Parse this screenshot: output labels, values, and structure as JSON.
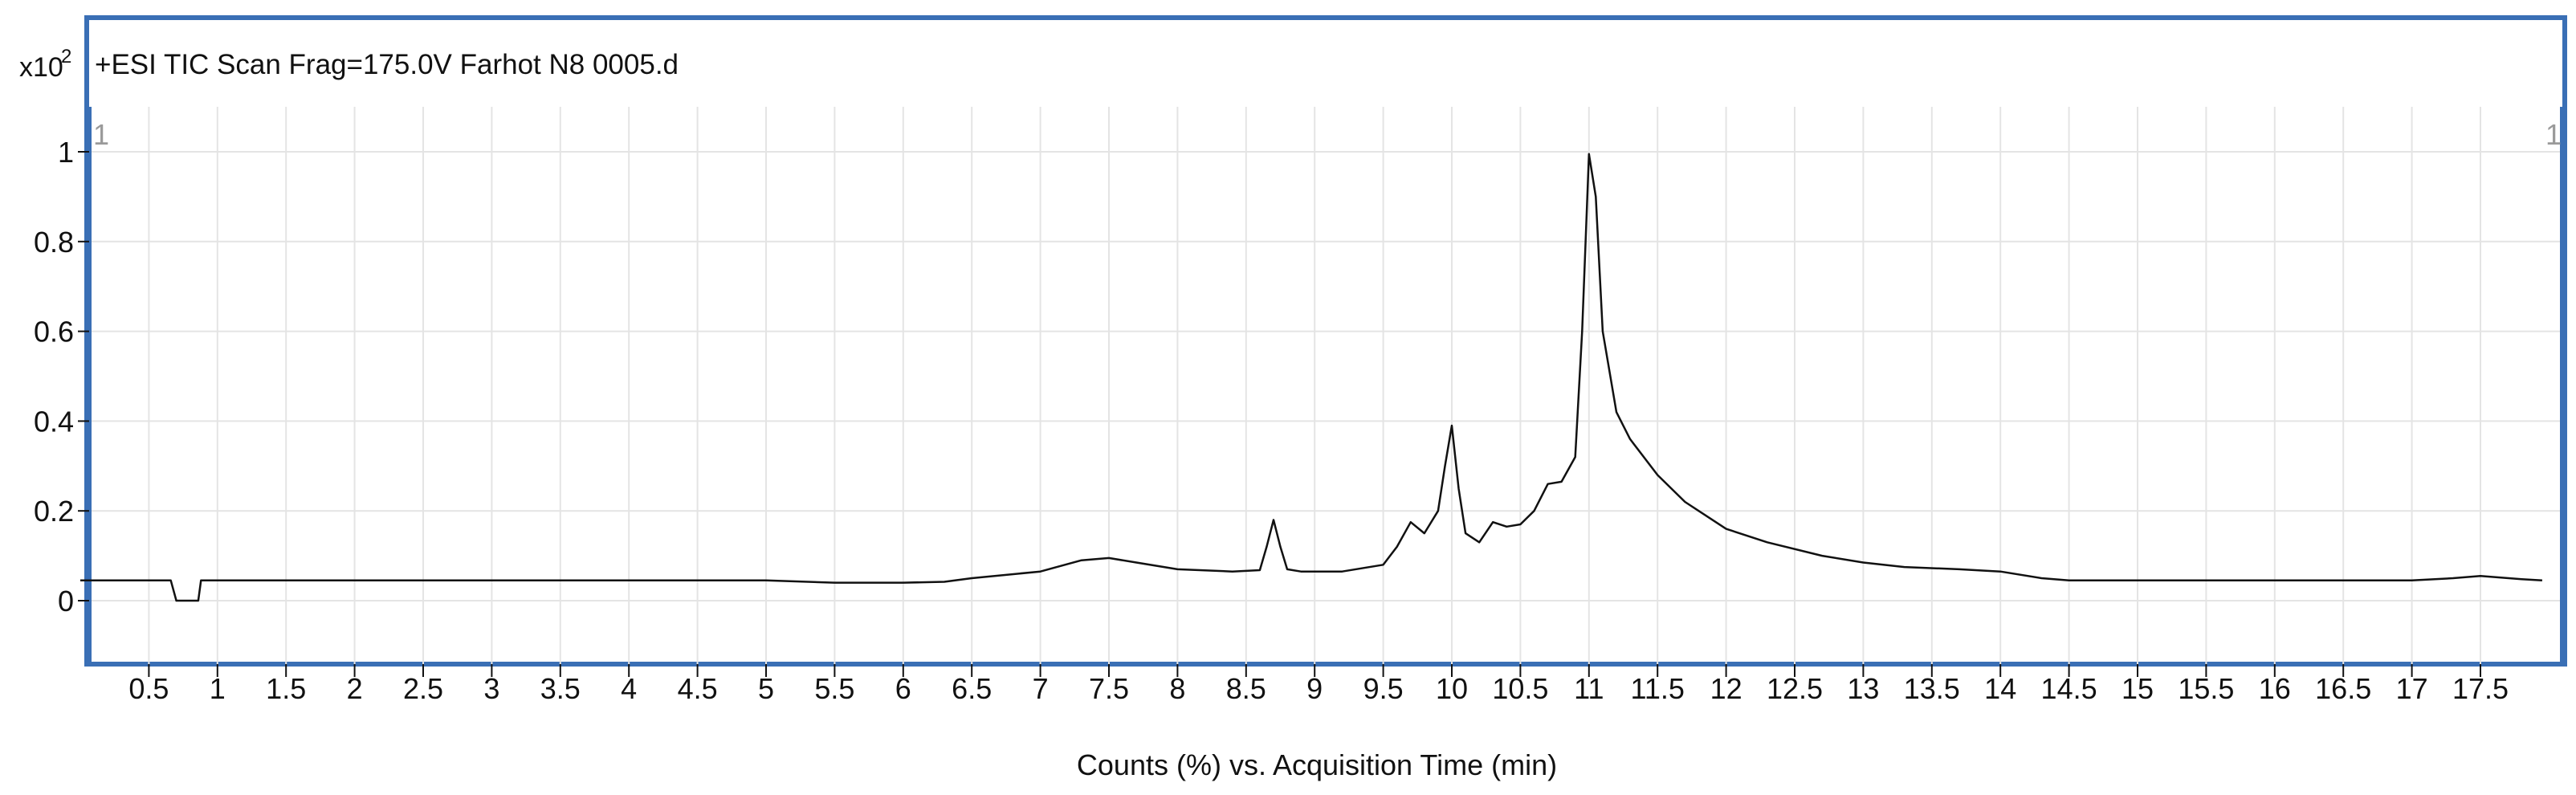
{
  "chart_data": {
    "type": "line",
    "title": "+ESI TIC Scan Frag=175.0V Farhot N8 0005.d",
    "xlabel": "Counts (%) vs. Acquisition Time (min)",
    "ylabel": "",
    "y_scale_label": "x10",
    "y_scale_exponent": "2",
    "corner_label_left": "1",
    "corner_label_right": "1",
    "xlim": [
      0,
      18
    ],
    "ylim": [
      -0.14,
      1.1
    ],
    "x_ticks": [
      "0.5",
      "1",
      "1.5",
      "2",
      "2.5",
      "3",
      "3.5",
      "4",
      "4.5",
      "5",
      "5.5",
      "6",
      "6.5",
      "7",
      "7.5",
      "8",
      "8.5",
      "9",
      "9.5",
      "10",
      "10.5",
      "11",
      "11.5",
      "12",
      "12.5",
      "13",
      "13.5",
      "14",
      "14.5",
      "15",
      "15.5",
      "16",
      "16.5",
      "17",
      "17.5"
    ],
    "y_ticks": [
      "0",
      "0.2",
      "0.4",
      "0.6",
      "0.8",
      "1"
    ],
    "grid": true,
    "colors": {
      "line": "#111111",
      "frame": "#3a6fb5",
      "grid": "#e4e4e4"
    },
    "series": [
      {
        "x": [
          0,
          0.66,
          0.7,
          0.86,
          0.88,
          2,
          4,
          5.0,
          5.5,
          6.0,
          6.3,
          6.5,
          7.0,
          7.3,
          7.5,
          7.7,
          8.0,
          8.4,
          8.6,
          8.65,
          8.7,
          8.75,
          8.8,
          8.9,
          9.2,
          9.5,
          9.6,
          9.7,
          9.8,
          9.9,
          9.95,
          10.0,
          10.05,
          10.1,
          10.2,
          10.3,
          10.4,
          10.5,
          10.6,
          10.7,
          10.8,
          10.9,
          10.95,
          11.0,
          11.05,
          11.1,
          11.2,
          11.3,
          11.5,
          11.7,
          12.0,
          12.3,
          12.7,
          13.0,
          13.3,
          13.7,
          14.0,
          14.3,
          14.5,
          15,
          16,
          17.0,
          17.3,
          17.5,
          17.8,
          17.95
        ],
        "values": [
          0.045,
          0.045,
          0.0,
          0.0,
          0.045,
          0.045,
          0.045,
          0.045,
          0.04,
          0.04,
          0.042,
          0.05,
          0.065,
          0.09,
          0.095,
          0.085,
          0.07,
          0.065,
          0.068,
          0.12,
          0.18,
          0.12,
          0.07,
          0.065,
          0.065,
          0.08,
          0.12,
          0.175,
          0.15,
          0.2,
          0.3,
          0.39,
          0.25,
          0.15,
          0.13,
          0.175,
          0.165,
          0.17,
          0.2,
          0.26,
          0.265,
          0.32,
          0.6,
          0.995,
          0.9,
          0.6,
          0.42,
          0.36,
          0.28,
          0.22,
          0.16,
          0.13,
          0.1,
          0.085,
          0.075,
          0.07,
          0.065,
          0.05,
          0.045,
          0.045,
          0.045,
          0.045,
          0.05,
          0.055,
          0.048,
          0.045
        ]
      }
    ]
  }
}
